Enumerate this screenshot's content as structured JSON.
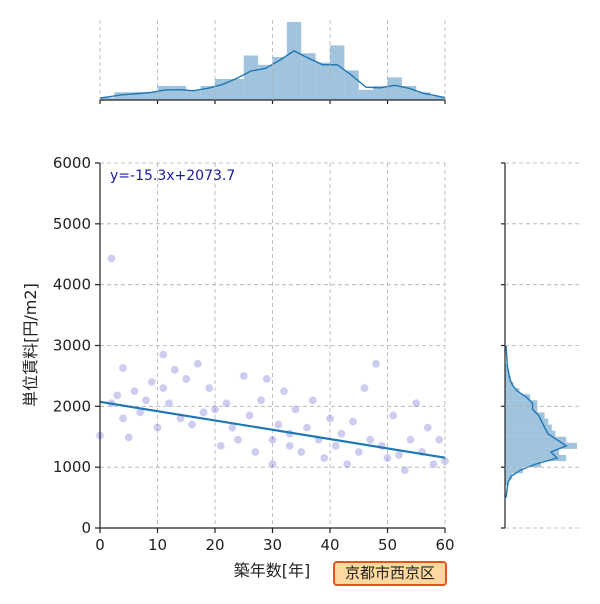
{
  "chart_data": {
    "type": "scatter",
    "title": "",
    "xlabel": "築年数[年]",
    "ylabel": "単位賃料[円/m2]",
    "xlim": [
      0,
      60
    ],
    "ylim": [
      0,
      6000
    ],
    "x_ticks": [
      "0",
      "10",
      "20",
      "30",
      "40",
      "50",
      "60"
    ],
    "y_ticks": [
      "0",
      "1000",
      "2000",
      "3000",
      "4000",
      "5000",
      "6000"
    ],
    "grid": true,
    "point_color": "#4a4ac8",
    "line_color": "#1f77b4",
    "hist_color": "#8fb8d8",
    "regression": {
      "slope": -15.3,
      "intercept": 2073.7,
      "label": "y=-15.3x+2073.7"
    },
    "top_histogram": {
      "bin_start": 0,
      "bin_width": 2.5,
      "relative_heights": [
        0.03,
        0.1,
        0.1,
        0.1,
        0.18,
        0.18,
        0.12,
        0.18,
        0.27,
        0.27,
        0.57,
        0.45,
        0.55,
        1.0,
        0.6,
        0.48,
        0.7,
        0.38,
        0.13,
        0.18,
        0.29,
        0.18,
        0.1,
        0.05
      ]
    },
    "right_histogram": {
      "bin_start": 700,
      "bin_width": 100,
      "relative_heights": [
        0.05,
        0.1,
        0.25,
        0.5,
        0.85,
        0.75,
        1.0,
        0.85,
        0.7,
        0.65,
        0.6,
        0.55,
        0.45,
        0.45,
        0.35,
        0.2,
        0.12,
        0.08,
        0.06,
        0.04
      ]
    },
    "points": [
      [
        0,
        1520
      ],
      [
        2,
        4430
      ],
      [
        2,
        2050
      ],
      [
        3,
        2180
      ],
      [
        4,
        2630
      ],
      [
        4,
        1800
      ],
      [
        5,
        1490
      ],
      [
        6,
        2250
      ],
      [
        7,
        1900
      ],
      [
        8,
        2100
      ],
      [
        9,
        2400
      ],
      [
        10,
        1650
      ],
      [
        11,
        2850
      ],
      [
        11,
        2300
      ],
      [
        12,
        2050
      ],
      [
        13,
        2600
      ],
      [
        14,
        1800
      ],
      [
        15,
        2450
      ],
      [
        16,
        1700
      ],
      [
        17,
        2700
      ],
      [
        18,
        1900
      ],
      [
        19,
        2300
      ],
      [
        20,
        1950
      ],
      [
        21,
        1350
      ],
      [
        22,
        2050
      ],
      [
        23,
        1650
      ],
      [
        24,
        1450
      ],
      [
        25,
        2500
      ],
      [
        26,
        1850
      ],
      [
        27,
        1250
      ],
      [
        28,
        2100
      ],
      [
        29,
        2450
      ],
      [
        30,
        1450
      ],
      [
        30,
        1050
      ],
      [
        31,
        1700
      ],
      [
        32,
        2250
      ],
      [
        33,
        1550
      ],
      [
        33,
        1350
      ],
      [
        34,
        1950
      ],
      [
        35,
        1250
      ],
      [
        36,
        1650
      ],
      [
        37,
        2100
      ],
      [
        38,
        1450
      ],
      [
        39,
        1150
      ],
      [
        40,
        1800
      ],
      [
        41,
        1350
      ],
      [
        42,
        1550
      ],
      [
        43,
        1050
      ],
      [
        44,
        1750
      ],
      [
        45,
        1250
      ],
      [
        46,
        2300
      ],
      [
        47,
        1450
      ],
      [
        48,
        2700
      ],
      [
        49,
        1350
      ],
      [
        50,
        1150
      ],
      [
        51,
        1850
      ],
      [
        52,
        1200
      ],
      [
        53,
        950
      ],
      [
        54,
        1450
      ],
      [
        55,
        2050
      ],
      [
        56,
        1250
      ],
      [
        57,
        1650
      ],
      [
        58,
        1050
      ],
      [
        59,
        1450
      ],
      [
        60,
        1100
      ]
    ]
  },
  "badge": {
    "label": "京都市西京区",
    "border_color": "#e0561e",
    "background_color": "#ffd9a0"
  }
}
